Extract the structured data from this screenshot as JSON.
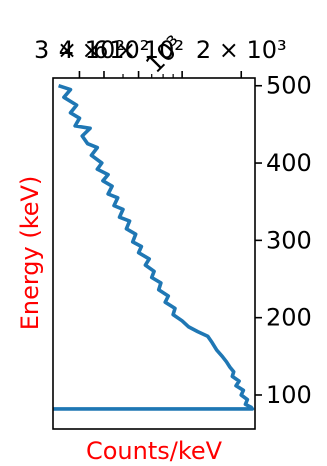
{
  "chart_data": {
    "type": "line",
    "xlabel": "Counts/keV",
    "ylabel": "Energy (keV)",
    "label_color": "#ff0000",
    "line_color": "#1f77b4",
    "x_scale": "log",
    "x_axis_position": "top",
    "y_axis_position": "right",
    "xlim": [
      220,
      2350
    ],
    "ylim": [
      56,
      510
    ],
    "grid": false,
    "x_ticks": [
      {
        "value": 300,
        "label": "3 × 10²"
      },
      {
        "value": 400,
        "label": "4 × 10²"
      },
      {
        "value": 600,
        "label": "6 × 10²"
      },
      {
        "value": 1000,
        "label": "10³"
      },
      {
        "value": 2000,
        "label": "2 × 10³"
      }
    ],
    "x_minor_ticks": [
      500,
      700,
      800,
      900
    ],
    "y_ticks": [
      {
        "value": 100,
        "label": "100"
      },
      {
        "value": 200,
        "label": "200"
      },
      {
        "value": 300,
        "label": "300"
      },
      {
        "value": 400,
        "label": "400"
      },
      {
        "value": 500,
        "label": "500"
      }
    ],
    "series": [
      {
        "points": [
          [
            235,
            500
          ],
          [
            270,
            495
          ],
          [
            250,
            485
          ],
          [
            290,
            475
          ],
          [
            270,
            465
          ],
          [
            300,
            458
          ],
          [
            285,
            448
          ],
          [
            340,
            445
          ],
          [
            310,
            435
          ],
          [
            330,
            425
          ],
          [
            370,
            420
          ],
          [
            345,
            410
          ],
          [
            390,
            400
          ],
          [
            370,
            392
          ],
          [
            420,
            385
          ],
          [
            395,
            377
          ],
          [
            440,
            370
          ],
          [
            420,
            360
          ],
          [
            470,
            355
          ],
          [
            450,
            345
          ],
          [
            500,
            340
          ],
          [
            480,
            330
          ],
          [
            540,
            325
          ],
          [
            520,
            315
          ],
          [
            580,
            308
          ],
          [
            560,
            298
          ],
          [
            620,
            292
          ],
          [
            600,
            284
          ],
          [
            680,
            276
          ],
          [
            650,
            268
          ],
          [
            720,
            260
          ],
          [
            700,
            252
          ],
          [
            780,
            245
          ],
          [
            760,
            236
          ],
          [
            850,
            228
          ],
          [
            820,
            220
          ],
          [
            920,
            212
          ],
          [
            900,
            204
          ],
          [
            1000,
            196
          ],
          [
            1080,
            188
          ],
          [
            1200,
            182
          ],
          [
            1350,
            176
          ],
          [
            1420,
            168
          ],
          [
            1500,
            158
          ],
          [
            1600,
            150
          ],
          [
            1680,
            143
          ],
          [
            1750,
            136
          ],
          [
            1830,
            130
          ],
          [
            1800,
            124
          ],
          [
            1950,
            118
          ],
          [
            1880,
            112
          ],
          [
            2050,
            106
          ],
          [
            2000,
            100
          ],
          [
            2150,
            94
          ],
          [
            2100,
            88
          ],
          [
            2250,
            84
          ],
          [
            2280,
            82
          ],
          [
            220,
            82
          ]
        ]
      }
    ]
  }
}
